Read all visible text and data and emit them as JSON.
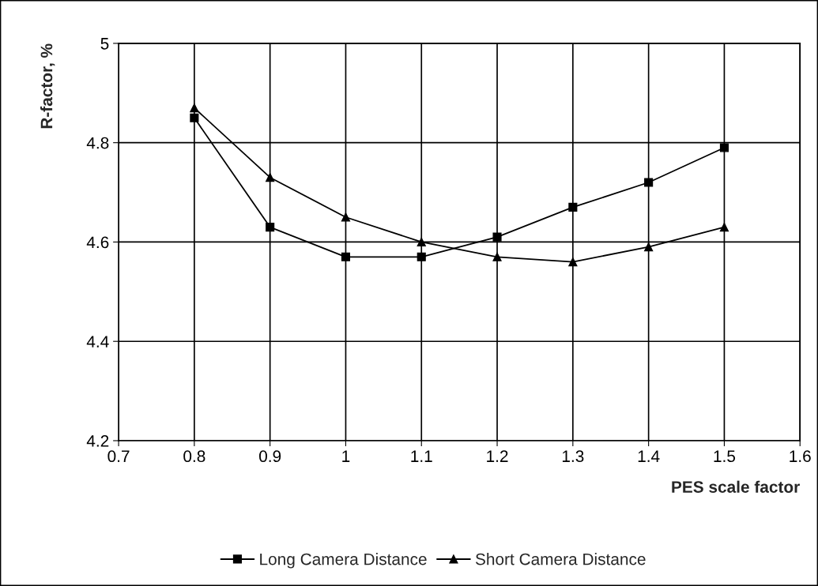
{
  "chart_data": {
    "type": "line",
    "xlabel": "PES scale factor",
    "ylabel": "R-factor, %",
    "x": [
      0.8,
      0.9,
      1.0,
      1.1,
      1.2,
      1.3,
      1.4,
      1.5
    ],
    "series": [
      {
        "name": "Long Camera Distance",
        "color": "#000000",
        "marker": "square",
        "values": [
          4.85,
          4.63,
          4.57,
          4.57,
          4.61,
          4.67,
          4.72,
          4.79
        ]
      },
      {
        "name": "Short Camera Distance",
        "color": "#000000",
        "marker": "triangle",
        "values": [
          4.87,
          4.73,
          4.65,
          4.6,
          4.57,
          4.56,
          4.59,
          4.63
        ]
      }
    ],
    "xlim": [
      0.7,
      1.6
    ],
    "xticks": [
      0.7,
      0.8,
      0.9,
      1,
      1.1,
      1.2,
      1.3,
      1.4,
      1.5,
      1.6
    ],
    "ylim": [
      4.2,
      5
    ],
    "yticks": [
      4.2,
      4.4,
      4.6,
      4.8,
      5
    ],
    "grid": true,
    "legend": "bottom",
    "line_style": "solid"
  }
}
